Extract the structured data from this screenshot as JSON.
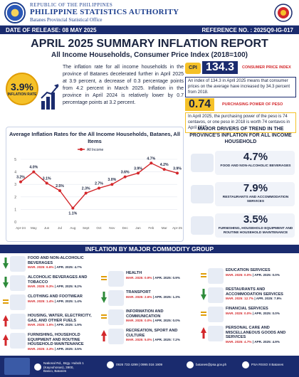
{
  "header": {
    "line1": "REPUBLIC OF THE PHILIPPINES",
    "line2": "PHILIPPINE STATISTICS AUTHORITY",
    "line3": "Batanes Provincial Statistical Office"
  },
  "release_bar": {
    "date": "DATE OF RELEASE: 08 MAY 2025",
    "reference": "REFERENCE NO. : 2025Q9-IG-017"
  },
  "title": {
    "main": "APRIL 2025 SUMMARY INFLATION REPORT",
    "sub": "All Income Households, Consumer Price Index (2018=100)"
  },
  "inflation_badge": {
    "value": "3.9%",
    "label": "INFLATION RATE"
  },
  "intro_text": "The inflation rate for all income households in the province of Batanes decelerated further in April 2025 at 3.9 percent, a decrease of 0.3 percentage points from 4.2 percent in March 2025. Inflation in the province in April 2024 is relatively lower by 0.7 percentage points at 3.2 percent.",
  "cpi": {
    "icon": "CPI",
    "value": "134.3",
    "label": "CONSUMER PRICE INDEX",
    "desc": "An index of 134.3 in April 2025 means that consumer prices on the average have increased by 34.3 percent from 2018."
  },
  "purchasing_power": {
    "value": "0.74",
    "label": "PURCHASING POWER OF PESO",
    "desc": "In April 2025, the purchasing power of the peso is 74 centavos, or one peso in 2018 is worth 74 centavos in April 2025."
  },
  "chart_data": {
    "type": "line",
    "title": "Average Inflation Rates for the All Income Households, Batanes, All Items",
    "legend": "All Income",
    "categories": [
      "Apr-24",
      "May",
      "Jun",
      "Jul",
      "Aug",
      "Sept",
      "Oct",
      "Nov",
      "Dec",
      "Jan",
      "Feb",
      "Mar",
      "Apr-25"
    ],
    "values": [
      3.2,
      4.0,
      3.1,
      2.5,
      1.1,
      2.3,
      2.7,
      3.0,
      3.6,
      3.9,
      4.7,
      4.2,
      3.9
    ],
    "value_labels": [
      "3.2%",
      "4.0%",
      "3.1%",
      "2.5%",
      "1.1%",
      "2.3%",
      "2.7%",
      "3.0%",
      "3.6%",
      "3.9%",
      "4.7%",
      "4.2%",
      "3.9%"
    ],
    "ylim": [
      0,
      5
    ],
    "yticks": [
      "0",
      "1",
      "2",
      "3",
      "4",
      "5"
    ],
    "grid": true,
    "legend_position": "top",
    "color": "#d3272b"
  },
  "drivers": {
    "title": "MAJOR DRIVERS OF TREND IN THE PROVINCE'S INFLATION FOR ALL INCOME HOUSEHOLD",
    "items": [
      {
        "value": "4.7%",
        "label": "FOOD AND NON-ALCOHOLIC BEVERAGES"
      },
      {
        "value": "7.9%",
        "label": "RESTAURANTS AND ACCOMMODATION SERVICES"
      },
      {
        "value": "3.5%",
        "label": "FURNISHING, HOUSEHOLD EQUIPMENT AND ROUTINE HOUSEHOLD MAINTENANCE"
      }
    ]
  },
  "commodity_header": "INFLATION BY MAJOR COMMODITY GROUP",
  "commodities": [
    {
      "name": "FOOD AND NON-ALCOHOLIC BEVERAGES",
      "mar": "MAR. 2025: 6.6%",
      "apr": "APR. 2025: 4.7%",
      "trend": "down"
    },
    {
      "name": "ALCOHOLIC BEVERAGES AND TOBACCO",
      "mar": "MAR. 2025: 9.3%",
      "apr": "APR. 2025: 9.2%",
      "trend": "down"
    },
    {
      "name": "CLOTHING AND FOOTWEAR",
      "mar": "MAR. 2025: 1.4%",
      "apr": "APR. 2025: 1.4%",
      "trend": "equal"
    },
    {
      "name": "HOUSING, WATER, ELECTRICITY, GAS, AND OTHER FUELS",
      "mar": "MAR. 2025: 1.6%",
      "apr": "APR. 2025: 1.9%",
      "trend": "up"
    },
    {
      "name": "FURNISHING, HOUSEHOLD EQUIPMENT AND ROUTINE HOUSEHOLD MAINTENANCE",
      "mar": "MAR. 2025: 3.3%",
      "apr": "APR. 2025: 3.5%",
      "trend": "up"
    },
    {
      "name": "HEALTH",
      "mar": "MAR. 2025: 0.9%",
      "apr": "APR. 2025: 0.9%",
      "trend": "equal"
    },
    {
      "name": "TRANSPORT",
      "mar": "MAR. 2025: 2.6%",
      "apr": "APR. 2025: 1.3%",
      "trend": "down"
    },
    {
      "name": "INFORMATION AND COMMUNICATION",
      "mar": "MAR. 2025: 0.0%",
      "apr": "APR. 2025: 0.0%",
      "trend": "equal"
    },
    {
      "name": "RECREATION, SPORT AND CULTURE",
      "mar": "MAR. 2025: 5.0%",
      "apr": "APR. 2025: 7.2%",
      "trend": "up"
    },
    {
      "name": "EDUCATION SERVICES",
      "mar": "MAR. 2025: 0.0%",
      "apr": "APR. 2025: 0.0%",
      "trend": "equal"
    },
    {
      "name": "RESTAURANTS AND ACCOMMODATION SERVICES",
      "mar": "MAR. 2025: 12.7%",
      "apr": "APR. 2025: 7.9%",
      "trend": "down"
    },
    {
      "name": "FINANCIAL SERVICES",
      "mar": "MAR. 2025: 0.0%",
      "apr": "APR. 2025: 0.0%",
      "trend": "equal"
    },
    {
      "name": "PERSONAL CARE AND MISCELLANEOUS GOODS AND SERVICES",
      "mar": "MAR. 2025: 4.7%",
      "apr": "APR. 2025: 4.9%",
      "trend": "up"
    }
  ],
  "footer": {
    "address": "National Rd., Brgy. Hubob 1 (Kayvuhonan), 3900, Basco, Batanes",
    "phone": "0926 733 4299 | 0995 016 1909",
    "email": "batanes@psa.gov.ph",
    "facebook": "PSA RSSO II Batanes"
  },
  "colors": {
    "navy": "#1a2b6e",
    "yellow": "#f5c128",
    "red": "#d3272b",
    "green": "#2e8b3a"
  }
}
